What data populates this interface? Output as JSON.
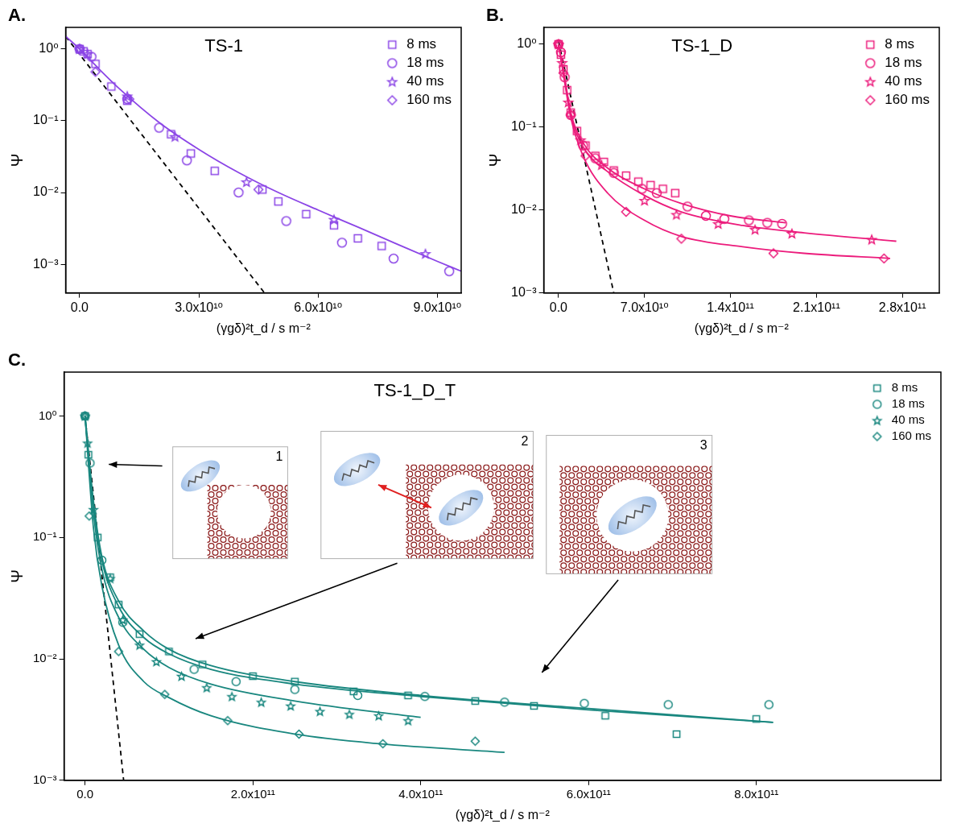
{
  "chart_data": [
    {
      "type": "scatter",
      "panel_label": "A.",
      "title": "TS-1",
      "x_label": "(γgδ)²t_d / s m⁻²",
      "y_label": "Ψ",
      "log": "y",
      "grid": false,
      "legend": "top-right",
      "xlim": [
        -3500000000.0,
        96000000000.0
      ],
      "xticks": [
        {
          "value": 0,
          "label": "0.0"
        },
        {
          "value": 30000000000.0,
          "label": "3.0x10¹⁰"
        },
        {
          "value": 60000000000.0,
          "label": "6.0x10¹⁰"
        },
        {
          "value": 90000000000.0,
          "label": "9.0x10¹⁰"
        }
      ],
      "ylim": [
        0.0004,
        2
      ],
      "yticks": [
        {
          "value": 0.001,
          "label": "10⁻³"
        },
        {
          "value": 0.01,
          "label": "10⁻²"
        },
        {
          "value": 0.1,
          "label": "10⁻¹"
        },
        {
          "value": 1,
          "label": "10⁰"
        }
      ],
      "series": [
        {
          "name": "8 ms",
          "type": "scatter",
          "color": "#8b45e6",
          "marker": "square",
          "x": [
            0,
            1000000000.0,
            2000000000.0,
            4000000000.0,
            8000000000.0,
            12000000000.0,
            23000000000.0,
            28000000000.0,
            34000000000.0,
            46000000000.0,
            50000000000.0,
            57000000000.0,
            64000000000.0,
            70000000000.0,
            76000000000.0
          ],
          "values": [
            1.0,
            0.93,
            0.85,
            0.62,
            0.3,
            0.19,
            0.065,
            0.035,
            0.02,
            0.011,
            0.0075,
            0.005,
            0.0035,
            0.0023,
            0.0018
          ]
        },
        {
          "name": "18 ms",
          "type": "scatter",
          "color": "#8b45e6",
          "marker": "circle",
          "x": [
            0,
            3000000000.0,
            12000000000.0,
            20000000000.0,
            27000000000.0,
            40000000000.0,
            52000000000.0,
            66000000000.0,
            79000000000.0,
            93000000000.0
          ],
          "values": [
            1.0,
            0.78,
            0.2,
            0.08,
            0.028,
            0.01,
            0.004,
            0.002,
            0.0012,
            0.0008
          ]
        },
        {
          "name": "40 ms",
          "type": "scatter",
          "color": "#8b45e6",
          "marker": "star",
          "x": [
            0,
            2000000000.0,
            12000000000.0,
            24000000000.0,
            42000000000.0,
            64000000000.0,
            87000000000.0
          ],
          "values": [
            1.0,
            0.85,
            0.22,
            0.06,
            0.014,
            0.0042,
            0.0014
          ]
        },
        {
          "name": "160 ms",
          "type": "scatter",
          "color": "#8b45e6",
          "marker": "diamond",
          "x": [
            0,
            4000000000.0,
            12500000000.0,
            45000000000.0
          ],
          "values": [
            1.0,
            0.48,
            0.2,
            0.011
          ]
        },
        {
          "type": "line",
          "color": "#8b45e6",
          "line_style": "solid",
          "x": [
            -3500000000.0,
            0,
            5000000000.0,
            10000000000.0,
            20000000000.0,
            30000000000.0,
            40000000000.0,
            50000000000.0,
            60000000000.0,
            70000000000.0,
            80000000000.0,
            90000000000.0,
            96000000000.0
          ],
          "values": [
            1.5,
            1.0,
            0.52,
            0.28,
            0.095,
            0.04,
            0.019,
            0.01,
            0.0057,
            0.0033,
            0.0019,
            0.0011,
            0.0008
          ]
        },
        {
          "type": "line",
          "color": "#000000",
          "line_style": "dashed",
          "x": [
            -3500000000.0,
            46500000000.0
          ],
          "values": [
            1.5,
            0.0004
          ]
        }
      ]
    },
    {
      "type": "scatter",
      "panel_label": "B.",
      "title": "TS-1_D",
      "x_label": "(γgδ)²t_d / s m⁻²",
      "y_label": "Ψ",
      "log": "y",
      "grid": false,
      "legend": "top-right",
      "xlim": [
        -12000000000.0,
        310000000000.0
      ],
      "xticks": [
        {
          "value": 0,
          "label": "0.0"
        },
        {
          "value": 70000000000.0,
          "label": "7.0x10¹⁰"
        },
        {
          "value": 140000000000.0,
          "label": "1.4x10¹¹"
        },
        {
          "value": 210000000000.0,
          "label": "2.1x10¹¹"
        },
        {
          "value": 280000000000.0,
          "label": "2.8x10¹¹"
        }
      ],
      "ylim": [
        0.001,
        1.6
      ],
      "yticks": [
        {
          "value": 0.001,
          "label": "10⁻³"
        },
        {
          "value": 0.01,
          "label": "10⁻²"
        },
        {
          "value": 0.1,
          "label": "10⁻¹"
        },
        {
          "value": 1,
          "label": "10⁰"
        }
      ],
      "series": [
        {
          "name": "8 ms",
          "type": "scatter",
          "color": "#ec1c7c",
          "marker": "square",
          "x": [
            0,
            2000000000.0,
            4000000000.0,
            7000000000.0,
            10000000000.0,
            15000000000.0,
            22000000000.0,
            30000000000.0,
            37000000000.0,
            45000000000.0,
            55000000000.0,
            65000000000.0,
            75000000000.0,
            85000000000.0,
            95000000000.0
          ],
          "values": [
            1.0,
            0.75,
            0.5,
            0.28,
            0.15,
            0.09,
            0.06,
            0.045,
            0.038,
            0.03,
            0.026,
            0.022,
            0.02,
            0.018,
            0.016
          ]
        },
        {
          "name": "18 ms",
          "type": "scatter",
          "color": "#ec1c7c",
          "marker": "circle",
          "x": [
            0,
            2000000000.0,
            5000000000.0,
            10000000000.0,
            20000000000.0,
            30000000000.0,
            45000000000.0,
            68000000000.0,
            80000000000.0,
            105000000000.0,
            120000000000.0,
            135000000000.0,
            155000000000.0,
            170000000000.0,
            182000000000.0
          ],
          "values": [
            1.0,
            0.8,
            0.4,
            0.14,
            0.06,
            0.042,
            0.028,
            0.018,
            0.016,
            0.011,
            0.0085,
            0.0078,
            0.0075,
            0.007,
            0.0068
          ]
        },
        {
          "name": "40 ms",
          "type": "scatter",
          "color": "#ec1c7c",
          "marker": "star",
          "x": [
            0,
            3000000000.0,
            8000000000.0,
            18000000000.0,
            35000000000.0,
            70000000000.0,
            96000000000.0,
            130000000000.0,
            160000000000.0,
            190000000000.0,
            255000000000.0
          ],
          "values": [
            1.0,
            0.6,
            0.2,
            0.07,
            0.035,
            0.013,
            0.0088,
            0.0068,
            0.0058,
            0.0052,
            0.0044
          ]
        },
        {
          "name": "160 ms",
          "type": "scatter",
          "color": "#ec1c7c",
          "marker": "diamond",
          "x": [
            0,
            4000000000.0,
            10000000000.0,
            22000000000.0,
            55000000000.0,
            100000000000.0,
            175000000000.0,
            265000000000.0
          ],
          "values": [
            1.0,
            0.45,
            0.14,
            0.045,
            0.0095,
            0.0045,
            0.003,
            0.0026
          ]
        },
        {
          "type": "line",
          "color": "#ec1c7c",
          "line_style": "solid",
          "x": [
            0,
            5000000000.0,
            10000000000.0,
            20000000000.0,
            40000000000.0,
            70000000000.0,
            100000000000.0,
            140000000000.0,
            185000000000.0
          ],
          "values": [
            1.0,
            0.4,
            0.15,
            0.065,
            0.032,
            0.018,
            0.012,
            0.0085,
            0.007
          ]
        },
        {
          "type": "line",
          "color": "#ec1c7c",
          "line_style": "solid",
          "x": [
            0,
            5000000000.0,
            10000000000.0,
            20000000000.0,
            40000000000.0,
            70000000000.0,
            100000000000.0,
            150000000000.0,
            200000000000.0,
            275000000000.0
          ],
          "values": [
            1.0,
            0.38,
            0.14,
            0.058,
            0.029,
            0.015,
            0.0095,
            0.0065,
            0.0053,
            0.0042
          ]
        },
        {
          "type": "line",
          "color": "#ec1c7c",
          "line_style": "solid",
          "x": [
            0,
            5000000000.0,
            10000000000.0,
            20000000000.0,
            40000000000.0,
            70000000000.0,
            100000000000.0,
            150000000000.0,
            200000000000.0,
            270000000000.0
          ],
          "values": [
            1.0,
            0.35,
            0.13,
            0.045,
            0.016,
            0.0075,
            0.0048,
            0.0036,
            0.003,
            0.0026
          ]
        },
        {
          "type": "line",
          "color": "#000000",
          "line_style": "dashed",
          "x": [
            0,
            45000000000.0
          ],
          "values": [
            1.1,
            0.001
          ]
        }
      ]
    },
    {
      "type": "scatter",
      "panel_label": "C.",
      "title": "TS-1_D_T",
      "x_label": "(γgδ)²t_d / s m⁻²",
      "y_label": "Ψ",
      "log": "y",
      "grid": false,
      "legend": "top-right",
      "insets": [
        "1",
        "2",
        "3"
      ],
      "xlim": [
        -25000000000.0,
        1020000000000.0
      ],
      "xticks": [
        {
          "value": 0,
          "label": "0.0"
        },
        {
          "value": 200000000000.0,
          "label": "2.0x10¹¹"
        },
        {
          "value": 400000000000.0,
          "label": "4.0x10¹¹"
        },
        {
          "value": 600000000000.0,
          "label": "6.0x10¹¹"
        },
        {
          "value": 800000000000.0,
          "label": "8.0x10¹¹"
        }
      ],
      "ylim": [
        0.001,
        2.3
      ],
      "yticks": [
        {
          "value": 0.001,
          "label": "10⁻³"
        },
        {
          "value": 0.01,
          "label": "10⁻²"
        },
        {
          "value": 0.1,
          "label": "10⁻¹"
        },
        {
          "value": 1,
          "label": "10⁰"
        }
      ],
      "series": [
        {
          "name": "8 ms",
          "type": "scatter",
          "color": "#19877f",
          "marker": "square",
          "x": [
            0,
            4000000000.0,
            15000000000.0,
            30000000000.0,
            40000000000.0,
            65000000000.0,
            100000000000.0,
            140000000000.0,
            200000000000.0,
            250000000000.0,
            320000000000.0,
            385000000000.0,
            465000000000.0,
            535000000000.0,
            620000000000.0,
            705000000000.0,
            800000000000.0
          ],
          "values": [
            1.0,
            0.48,
            0.1,
            0.047,
            0.028,
            0.016,
            0.0115,
            0.009,
            0.0072,
            0.0065,
            0.0054,
            0.005,
            0.0045,
            0.0041,
            0.0034,
            0.0024,
            0.0032
          ]
        },
        {
          "name": "18 ms",
          "type": "scatter",
          "color": "#19877f",
          "marker": "circle",
          "x": [
            0,
            6000000000.0,
            20000000000.0,
            45000000000.0,
            130000000000.0,
            180000000000.0,
            250000000000.0,
            325000000000.0,
            405000000000.0,
            500000000000.0,
            595000000000.0,
            695000000000.0,
            815000000000.0
          ],
          "values": [
            1.0,
            0.41,
            0.065,
            0.02,
            0.0082,
            0.0065,
            0.0056,
            0.005,
            0.0049,
            0.0044,
            0.0043,
            0.0042,
            0.0042
          ]
        },
        {
          "name": "40 ms",
          "type": "scatter",
          "color": "#19877f",
          "marker": "star",
          "x": [
            0,
            3000000000.0,
            10000000000.0,
            30000000000.0,
            45000000000.0,
            65000000000.0,
            85000000000.0,
            115000000000.0,
            145000000000.0,
            175000000000.0,
            210000000000.0,
            245000000000.0,
            280000000000.0,
            315000000000.0,
            350000000000.0,
            385000000000.0
          ],
          "values": [
            1.0,
            0.6,
            0.17,
            0.046,
            0.021,
            0.013,
            0.0095,
            0.0072,
            0.0058,
            0.0049,
            0.0044,
            0.0041,
            0.0037,
            0.0035,
            0.0034,
            0.0031
          ]
        },
        {
          "name": "160 ms",
          "type": "scatter",
          "color": "#19877f",
          "marker": "diamond",
          "x": [
            0,
            5000000000.0,
            40000000000.0,
            95000000000.0,
            170000000000.0,
            255000000000.0,
            355000000000.0,
            465000000000.0
          ],
          "values": [
            1.0,
            0.15,
            0.0115,
            0.0051,
            0.0031,
            0.0024,
            0.002,
            0.0021
          ]
        },
        {
          "type": "line",
          "color": "#19877f",
          "line_style": "solid",
          "x": [
            0,
            10000000000.0,
            20000000000.0,
            40000000000.0,
            70000000000.0,
            100000000000.0,
            150000000000.0,
            250000000000.0,
            400000000000.0,
            600000000000.0,
            820000000000.0
          ],
          "values": [
            1.0,
            0.2,
            0.07,
            0.03,
            0.017,
            0.012,
            0.0088,
            0.0065,
            0.005,
            0.0039,
            0.003
          ]
        },
        {
          "type": "line",
          "color": "#19877f",
          "line_style": "solid",
          "x": [
            0,
            10000000000.0,
            20000000000.0,
            40000000000.0,
            70000000000.0,
            100000000000.0,
            150000000000.0,
            250000000000.0,
            400000000000.0,
            600000000000.0,
            820000000000.0
          ],
          "values": [
            1.0,
            0.18,
            0.065,
            0.027,
            0.015,
            0.011,
            0.0082,
            0.0062,
            0.0049,
            0.0038,
            0.003
          ]
        },
        {
          "type": "line",
          "color": "#19877f",
          "line_style": "solid",
          "x": [
            0,
            10000000000.0,
            20000000000.0,
            40000000000.0,
            70000000000.0,
            100000000000.0,
            150000000000.0,
            250000000000.0,
            400000000000.0
          ],
          "values": [
            1.0,
            0.16,
            0.055,
            0.022,
            0.012,
            0.0085,
            0.0062,
            0.0045,
            0.0033
          ]
        },
        {
          "type": "line",
          "color": "#19877f",
          "line_style": "solid",
          "x": [
            0,
            10000000000.0,
            20000000000.0,
            40000000000.0,
            70000000000.0,
            100000000000.0,
            150000000000.0,
            250000000000.0,
            350000000000.0,
            500000000000.0
          ],
          "values": [
            1.0,
            0.12,
            0.04,
            0.013,
            0.0065,
            0.0048,
            0.0034,
            0.0024,
            0.002,
            0.0017
          ]
        },
        {
          "type": "line",
          "color": "#000000",
          "line_style": "dashed",
          "x": [
            0,
            46000000000.0
          ],
          "values": [
            1.0,
            0.001
          ]
        }
      ]
    }
  ]
}
